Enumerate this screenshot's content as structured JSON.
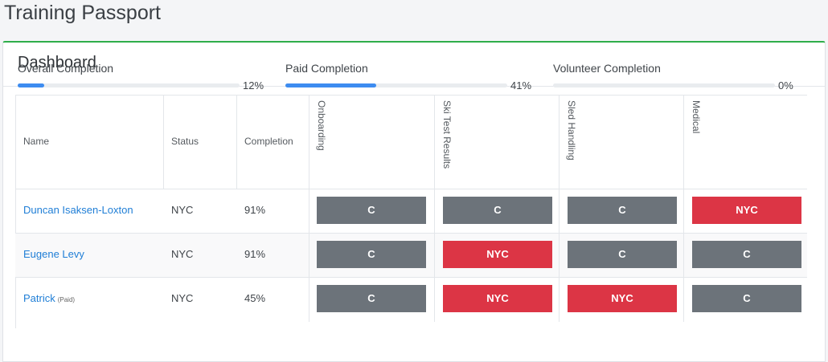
{
  "app": {
    "title": "Training Passport"
  },
  "card": {
    "title": "Dashboard"
  },
  "progress": [
    {
      "label": "Overall Completion",
      "value": 0.12,
      "value_text": "12%"
    },
    {
      "label": "Paid Completion",
      "value": 0.41,
      "value_text": "41%"
    },
    {
      "label": "Volunteer Completion",
      "value": 0.0,
      "value_text": "0%"
    }
  ],
  "table": {
    "headers": {
      "name": "Name",
      "status": "Status",
      "completion": "Completion",
      "onboarding": "Onboarding",
      "ski": "Ski Test Results",
      "sled": "Sled Handling",
      "medical": "Medical"
    },
    "rows": [
      {
        "name": "Duncan Isaksen-Loxton",
        "tag": "",
        "status": "NYC",
        "completion": "91%",
        "onboarding": "C",
        "ski": "C",
        "sled": "C",
        "medical": "NYC"
      },
      {
        "name": "Eugene Levy",
        "tag": "",
        "status": "NYC",
        "completion": "91%",
        "onboarding": "C",
        "ski": "NYC",
        "sled": "C",
        "medical": "C"
      },
      {
        "name": "Patrick",
        "tag": "(Paid)",
        "status": "NYC",
        "completion": "45%",
        "onboarding": "C",
        "ski": "NYC",
        "sled": "NYC",
        "medical": "C"
      }
    ]
  },
  "colors": {
    "complete": "#6c737a",
    "not_yet_complete": "#dc3545",
    "accent": "#2fae4a",
    "link": "#1f7ed6",
    "progress": "#3d8cf0"
  }
}
